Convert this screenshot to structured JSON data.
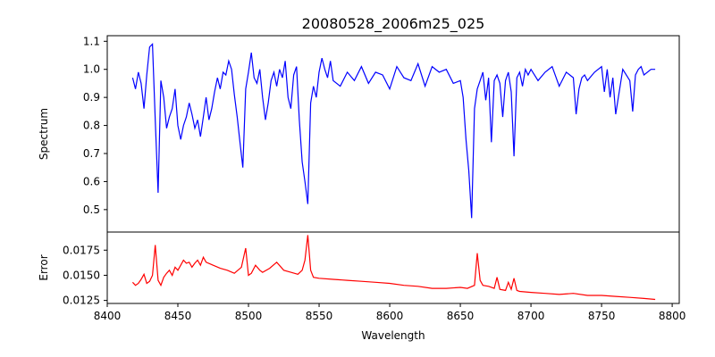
{
  "chart_data": [
    {
      "type": "line",
      "panel": "top",
      "title": "20080528_2006m25_025",
      "xlabel": "",
      "ylabel": "Spectrum",
      "xlim": [
        8400,
        8805
      ],
      "ylim": [
        0.42,
        1.12
      ],
      "yticks": [
        0.5,
        0.6,
        0.7,
        0.8,
        0.9,
        1.0,
        1.1
      ],
      "ytick_labels": [
        "0.5",
        "0.6",
        "0.7",
        "0.8",
        "0.9",
        "1.0",
        "1.1"
      ],
      "grid": false,
      "series": [
        {
          "color": "#0000ff",
          "x": [
            8418,
            8420,
            8422,
            8424,
            8426,
            8428,
            8430,
            8432,
            8434,
            8436,
            8438,
            8440,
            8442,
            8444,
            8446,
            8448,
            8450,
            8452,
            8454,
            8456,
            8458,
            8460,
            8462,
            8464,
            8466,
            8468,
            8470,
            8472,
            8474,
            8476,
            8478,
            8480,
            8482,
            8484,
            8486,
            8488,
            8490,
            8492,
            8494,
            8496,
            8498,
            8500,
            8502,
            8504,
            8506,
            8508,
            8510,
            8512,
            8514,
            8516,
            8518,
            8520,
            8522,
            8524,
            8526,
            8528,
            8530,
            8532,
            8534,
            8536,
            8538,
            8540,
            8542,
            8544,
            8546,
            8548,
            8550,
            8552,
            8554,
            8556,
            8558,
            8560,
            8565,
            8570,
            8575,
            8580,
            8585,
            8590,
            8595,
            8600,
            8605,
            8610,
            8615,
            8620,
            8625,
            8630,
            8635,
            8640,
            8645,
            8650,
            8652,
            8654,
            8656,
            8658,
            8660,
            8662,
            8664,
            8666,
            8668,
            8670,
            8672,
            8674,
            8676,
            8678,
            8680,
            8682,
            8684,
            8686,
            8688,
            8690,
            8692,
            8694,
            8696,
            8698,
            8700,
            8705,
            8710,
            8715,
            8720,
            8725,
            8730,
            8732,
            8734,
            8736,
            8738,
            8740,
            8745,
            8750,
            8752,
            8754,
            8756,
            8758,
            8760,
            8765,
            8770,
            8772,
            8774,
            8776,
            8778,
            8780,
            8785,
            8788
          ],
          "y": [
            0.97,
            0.93,
            0.99,
            0.95,
            0.86,
            0.98,
            1.08,
            1.09,
            0.82,
            0.56,
            0.96,
            0.9,
            0.79,
            0.83,
            0.86,
            0.93,
            0.8,
            0.75,
            0.8,
            0.83,
            0.88,
            0.84,
            0.79,
            0.82,
            0.76,
            0.83,
            0.9,
            0.82,
            0.86,
            0.92,
            0.97,
            0.93,
            0.99,
            0.98,
            1.03,
            1.0,
            0.91,
            0.83,
            0.74,
            0.65,
            0.93,
            0.99,
            1.06,
            0.97,
            0.95,
            1.0,
            0.9,
            0.82,
            0.88,
            0.96,
            0.99,
            0.94,
            1.0,
            0.97,
            1.03,
            0.9,
            0.86,
            0.98,
            1.01,
            0.82,
            0.67,
            0.6,
            0.52,
            0.88,
            0.94,
            0.9,
            0.99,
            1.04,
            1.0,
            0.97,
            1.03,
            0.96,
            0.94,
            0.99,
            0.96,
            1.01,
            0.95,
            0.99,
            0.98,
            0.93,
            1.01,
            0.97,
            0.96,
            1.02,
            0.94,
            1.01,
            0.99,
            1.0,
            0.95,
            0.96,
            0.9,
            0.75,
            0.64,
            0.47,
            0.86,
            0.93,
            0.96,
            0.99,
            0.89,
            0.97,
            0.74,
            0.96,
            0.98,
            0.95,
            0.83,
            0.96,
            0.99,
            0.92,
            0.69,
            0.97,
            0.99,
            0.94,
            1.0,
            0.98,
            1.0,
            0.96,
            0.99,
            1.01,
            0.94,
            0.99,
            0.97,
            0.84,
            0.93,
            0.97,
            0.98,
            0.96,
            0.99,
            1.01,
            0.92,
            1.0,
            0.9,
            0.97,
            0.84,
            1.0,
            0.96,
            0.85,
            0.98,
            1.0,
            1.01,
            0.98,
            1.0,
            1.0
          ]
        }
      ]
    },
    {
      "type": "line",
      "panel": "bottom",
      "title": "",
      "xlabel": "Wavelength",
      "ylabel": "Error",
      "xlim": [
        8400,
        8805
      ],
      "ylim": [
        0.0122,
        0.0193
      ],
      "xticks": [
        8400,
        8450,
        8500,
        8550,
        8600,
        8650,
        8700,
        8750,
        8800
      ],
      "xtick_labels": [
        "8400",
        "8450",
        "8500",
        "8550",
        "8600",
        "8650",
        "8700",
        "8750",
        "8800"
      ],
      "yticks": [
        0.0125,
        0.015,
        0.0175
      ],
      "ytick_labels": [
        "0.0125",
        "0.0150",
        "0.0175"
      ],
      "grid": false,
      "series": [
        {
          "color": "#ff0000",
          "x": [
            8418,
            8420,
            8422,
            8424,
            8426,
            8428,
            8430,
            8432,
            8434,
            8436,
            8438,
            8440,
            8442,
            8444,
            8446,
            8448,
            8450,
            8452,
            8454,
            8456,
            8458,
            8460,
            8462,
            8464,
            8466,
            8468,
            8470,
            8475,
            8480,
            8485,
            8490,
            8495,
            8498,
            8500,
            8502,
            8505,
            8508,
            8510,
            8515,
            8520,
            8525,
            8530,
            8535,
            8538,
            8540,
            8542,
            8544,
            8546,
            8550,
            8560,
            8570,
            8580,
            8590,
            8600,
            8610,
            8620,
            8630,
            8640,
            8650,
            8655,
            8660,
            8662,
            8664,
            8666,
            8670,
            8674,
            8676,
            8678,
            8682,
            8684,
            8686,
            8688,
            8690,
            8692,
            8700,
            8710,
            8720,
            8730,
            8740,
            8750,
            8760,
            8770,
            8780,
            8788
          ],
          "y": [
            0.0143,
            0.014,
            0.0142,
            0.0146,
            0.0151,
            0.0142,
            0.0144,
            0.015,
            0.018,
            0.0145,
            0.014,
            0.0148,
            0.0152,
            0.0155,
            0.015,
            0.0158,
            0.0155,
            0.016,
            0.0165,
            0.0162,
            0.0163,
            0.0158,
            0.0162,
            0.0165,
            0.016,
            0.0168,
            0.0163,
            0.016,
            0.0157,
            0.0155,
            0.0152,
            0.0158,
            0.0177,
            0.015,
            0.0152,
            0.016,
            0.0155,
            0.0153,
            0.0157,
            0.0163,
            0.0155,
            0.0153,
            0.0151,
            0.0155,
            0.0165,
            0.019,
            0.0155,
            0.0148,
            0.0147,
            0.0146,
            0.0145,
            0.0144,
            0.0143,
            0.0142,
            0.014,
            0.0139,
            0.0137,
            0.0137,
            0.0138,
            0.0137,
            0.014,
            0.0172,
            0.0145,
            0.014,
            0.0139,
            0.0137,
            0.0148,
            0.0136,
            0.0135,
            0.0143,
            0.0136,
            0.0147,
            0.0135,
            0.0134,
            0.0133,
            0.0132,
            0.0131,
            0.0132,
            0.013,
            0.013,
            0.0129,
            0.0128,
            0.0127,
            0.0126
          ]
        }
      ]
    }
  ]
}
